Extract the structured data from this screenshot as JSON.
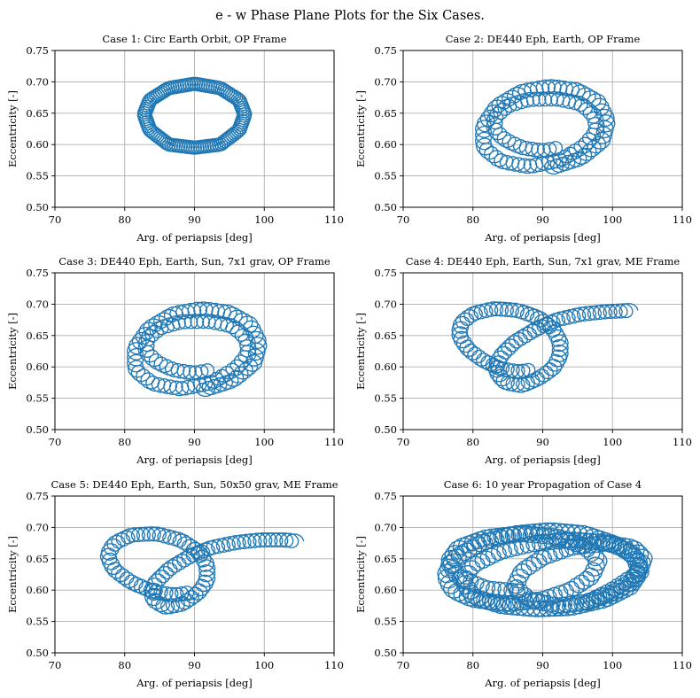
{
  "figure": {
    "title": "e - w Phase Plane Plots for the Six Cases."
  },
  "chart_data": [
    {
      "type": "line",
      "title": "Case 1: Circ Earth Orbit, OP Frame",
      "xlabel": "Arg. of periapsis [deg]",
      "ylabel": "Eccentricity [-]",
      "xlim": [
        70,
        110
      ],
      "ylim": [
        0.5,
        0.75
      ],
      "xticks": [
        "70",
        "80",
        "90",
        "100",
        "110"
      ],
      "yticks": [
        "0.50",
        "0.55",
        "0.60",
        "0.65",
        "0.70",
        "0.75"
      ],
      "grid": true,
      "color": "#1f77b4",
      "centerline": [
        [
          90.0,
          0.595
        ],
        [
          93.7,
          0.6
        ],
        [
          96.4,
          0.623
        ],
        [
          97.2,
          0.648
        ],
        [
          96.4,
          0.671
        ],
        [
          93.7,
          0.69
        ],
        [
          90.0,
          0.697
        ],
        [
          86.3,
          0.69
        ],
        [
          83.6,
          0.671
        ],
        [
          82.8,
          0.648
        ],
        [
          83.6,
          0.623
        ],
        [
          86.3,
          0.6
        ],
        [
          90.0,
          0.595
        ]
      ]
    },
    {
      "type": "line",
      "title": "Case 2: DE440 Eph, Earth, OP Frame",
      "xlabel": "Arg. of periapsis [deg]",
      "ylabel": "Eccentricity [-]",
      "xlim": [
        70,
        110
      ],
      "ylim": [
        0.5,
        0.75
      ],
      "xticks": [
        "70",
        "80",
        "90",
        "100",
        "110"
      ],
      "yticks": [
        "0.50",
        "0.55",
        "0.60",
        "0.65",
        "0.70",
        "0.75"
      ],
      "grid": true,
      "color": "#1f77b4",
      "centerline": [
        [
          92.5,
          0.595
        ],
        [
          90.0,
          0.59
        ],
        [
          87.0,
          0.595
        ],
        [
          84.5,
          0.608
        ],
        [
          83.0,
          0.625
        ],
        [
          83.2,
          0.645
        ],
        [
          85.0,
          0.662
        ],
        [
          88.0,
          0.672
        ],
        [
          92.0,
          0.673
        ],
        [
          95.5,
          0.665
        ],
        [
          97.5,
          0.645
        ],
        [
          97.8,
          0.622
        ],
        [
          96.0,
          0.598
        ],
        [
          92.5,
          0.575
        ],
        [
          88.0,
          0.565
        ],
        [
          84.0,
          0.573
        ],
        [
          81.5,
          0.595
        ],
        [
          81.5,
          0.63
        ],
        [
          83.5,
          0.662
        ],
        [
          87.0,
          0.685
        ],
        [
          91.0,
          0.693
        ],
        [
          95.0,
          0.687
        ],
        [
          98.0,
          0.668
        ],
        [
          99.3,
          0.638
        ],
        [
          98.5,
          0.605
        ],
        [
          95.5,
          0.578
        ],
        [
          91.0,
          0.562
        ]
      ]
    },
    {
      "type": "line",
      "title": "Case 3: DE440 Eph, Earth, Sun, 7x1 grav, OP Frame",
      "xlabel": "Arg. of periapsis [deg]",
      "ylabel": "Eccentricity [-]",
      "xlim": [
        70,
        110
      ],
      "ylim": [
        0.5,
        0.75
      ],
      "xticks": [
        "70",
        "80",
        "90",
        "100",
        "110"
      ],
      "yticks": [
        "0.50",
        "0.55",
        "0.60",
        "0.65",
        "0.70",
        "0.75"
      ],
      "grid": true,
      "color": "#1f77b4",
      "centerline": [
        [
          92.5,
          0.595
        ],
        [
          90.0,
          0.59
        ],
        [
          87.0,
          0.595
        ],
        [
          84.5,
          0.608
        ],
        [
          83.0,
          0.625
        ],
        [
          83.2,
          0.645
        ],
        [
          85.0,
          0.662
        ],
        [
          88.0,
          0.672
        ],
        [
          92.0,
          0.673
        ],
        [
          95.5,
          0.665
        ],
        [
          97.5,
          0.645
        ],
        [
          97.8,
          0.622
        ],
        [
          96.0,
          0.598
        ],
        [
          92.5,
          0.575
        ],
        [
          88.0,
          0.565
        ],
        [
          84.0,
          0.573
        ],
        [
          81.5,
          0.595
        ],
        [
          81.5,
          0.63
        ],
        [
          83.5,
          0.662
        ],
        [
          87.0,
          0.685
        ],
        [
          91.0,
          0.693
        ],
        [
          95.0,
          0.687
        ],
        [
          98.0,
          0.668
        ],
        [
          99.3,
          0.638
        ],
        [
          98.5,
          0.605
        ],
        [
          95.5,
          0.578
        ],
        [
          91.0,
          0.562
        ]
      ]
    },
    {
      "type": "line",
      "title": "Case 4: DE440 Eph, Earth, Sun, 7x1 grav, ME Frame",
      "xlabel": "Arg. of periapsis [deg]",
      "ylabel": "Eccentricity [-]",
      "xlim": [
        70,
        110
      ],
      "ylim": [
        0.5,
        0.75
      ],
      "xticks": [
        "70",
        "80",
        "90",
        "100",
        "110"
      ],
      "yticks": [
        "0.50",
        "0.55",
        "0.60",
        "0.65",
        "0.70",
        "0.75"
      ],
      "grid": true,
      "color": "#1f77b4",
      "centerline": [
        [
          88.5,
          0.595
        ],
        [
          86.5,
          0.592
        ],
        [
          84.0,
          0.597
        ],
        [
          81.5,
          0.61
        ],
        [
          79.3,
          0.628
        ],
        [
          78.0,
          0.65
        ],
        [
          78.3,
          0.67
        ],
        [
          80.0,
          0.685
        ],
        [
          83.0,
          0.693
        ],
        [
          86.5,
          0.69
        ],
        [
          89.5,
          0.678
        ],
        [
          91.5,
          0.66
        ],
        [
          92.5,
          0.64
        ],
        [
          92.5,
          0.618
        ],
        [
          91.5,
          0.598
        ],
        [
          89.5,
          0.582
        ],
        [
          87.0,
          0.57
        ],
        [
          84.5,
          0.575
        ],
        [
          83.2,
          0.595
        ],
        [
          84.0,
          0.618
        ],
        [
          86.0,
          0.64
        ],
        [
          89.0,
          0.66
        ],
        [
          92.0,
          0.675
        ],
        [
          95.5,
          0.684
        ],
        [
          99.0,
          0.688
        ],
        [
          102.5,
          0.69
        ]
      ]
    },
    {
      "type": "line",
      "title": "Case 5: DE440 Eph, Earth, Sun, 50x50 grav, ME Frame",
      "xlabel": "Arg. of periapsis [deg]",
      "ylabel": "Eccentricity [-]",
      "xlim": [
        70,
        110
      ],
      "ylim": [
        0.5,
        0.75
      ],
      "xticks": [
        "70",
        "80",
        "90",
        "100",
        "110"
      ],
      "yticks": [
        "0.50",
        "0.55",
        "0.60",
        "0.65",
        "0.70",
        "0.75"
      ],
      "grid": true,
      "color": "#1f77b4",
      "centerline": [
        [
          89.5,
          0.596
        ],
        [
          87.0,
          0.592
        ],
        [
          84.0,
          0.598
        ],
        [
          81.0,
          0.612
        ],
        [
          78.5,
          0.632
        ],
        [
          77.5,
          0.655
        ],
        [
          78.5,
          0.675
        ],
        [
          81.0,
          0.688
        ],
        [
          84.5,
          0.69
        ],
        [
          88.0,
          0.68
        ],
        [
          90.5,
          0.662
        ],
        [
          91.8,
          0.64
        ],
        [
          91.8,
          0.615
        ],
        [
          90.5,
          0.595
        ],
        [
          88.3,
          0.578
        ],
        [
          85.8,
          0.572
        ],
        [
          84.0,
          0.585
        ],
        [
          84.2,
          0.61
        ],
        [
          86.5,
          0.635
        ],
        [
          89.5,
          0.655
        ],
        [
          92.5,
          0.668
        ],
        [
          96.0,
          0.676
        ],
        [
          99.5,
          0.68
        ],
        [
          103.0,
          0.68
        ],
        [
          104.5,
          0.678
        ]
      ]
    },
    {
      "type": "line",
      "title": "Case 6: 10 year Propagation of Case 4",
      "xlabel": "Arg. of periapsis [deg]",
      "ylabel": "Eccentricity [-]",
      "xlim": [
        70,
        110
      ],
      "ylim": [
        0.5,
        0.75
      ],
      "xticks": [
        "70",
        "80",
        "90",
        "100",
        "110"
      ],
      "yticks": [
        "0.50",
        "0.55",
        "0.60",
        "0.65",
        "0.70",
        "0.75"
      ],
      "grid": true,
      "color": "#1f77b4",
      "centerline": [
        [
          87.0,
          0.597
        ],
        [
          82.0,
          0.602
        ],
        [
          78.0,
          0.62
        ],
        [
          76.5,
          0.645
        ],
        [
          78.0,
          0.668
        ],
        [
          82.0,
          0.684
        ],
        [
          87.0,
          0.69
        ],
        [
          92.0,
          0.685
        ],
        [
          96.0,
          0.67
        ],
        [
          98.0,
          0.648
        ],
        [
          97.0,
          0.622
        ],
        [
          94.0,
          0.6
        ],
        [
          90.0,
          0.585
        ],
        [
          85.0,
          0.578
        ],
        [
          80.0,
          0.585
        ],
        [
          77.0,
          0.6
        ],
        [
          76.0,
          0.625
        ],
        [
          77.5,
          0.652
        ],
        [
          81.0,
          0.675
        ],
        [
          86.0,
          0.69
        ],
        [
          91.0,
          0.695
        ],
        [
          96.0,
          0.69
        ],
        [
          100.0,
          0.675
        ],
        [
          103.0,
          0.655
        ],
        [
          104.0,
          0.63
        ],
        [
          102.5,
          0.605
        ],
        [
          99.0,
          0.585
        ],
        [
          94.0,
          0.572
        ],
        [
          89.0,
          0.57
        ],
        [
          84.0,
          0.575
        ],
        [
          80.0,
          0.59
        ],
        [
          78.5,
          0.615
        ],
        [
          80.0,
          0.64
        ],
        [
          84.0,
          0.662
        ],
        [
          89.0,
          0.675
        ],
        [
          94.0,
          0.68
        ],
        [
          99.0,
          0.676
        ],
        [
          102.5,
          0.662
        ],
        [
          104.0,
          0.64
        ],
        [
          103.0,
          0.615
        ],
        [
          100.0,
          0.595
        ],
        [
          96.0,
          0.58
        ],
        [
          92.0,
          0.575
        ],
        [
          88.0,
          0.585
        ],
        [
          86.0,
          0.605
        ],
        [
          87.0,
          0.63
        ],
        [
          90.0,
          0.652
        ],
        [
          94.0,
          0.668
        ],
        [
          99.0,
          0.675
        ],
        [
          103.0,
          0.668
        ],
        [
          104.5,
          0.65
        ],
        [
          103.5,
          0.625
        ],
        [
          100.0,
          0.6
        ],
        [
          96.0,
          0.578
        ]
      ]
    }
  ]
}
